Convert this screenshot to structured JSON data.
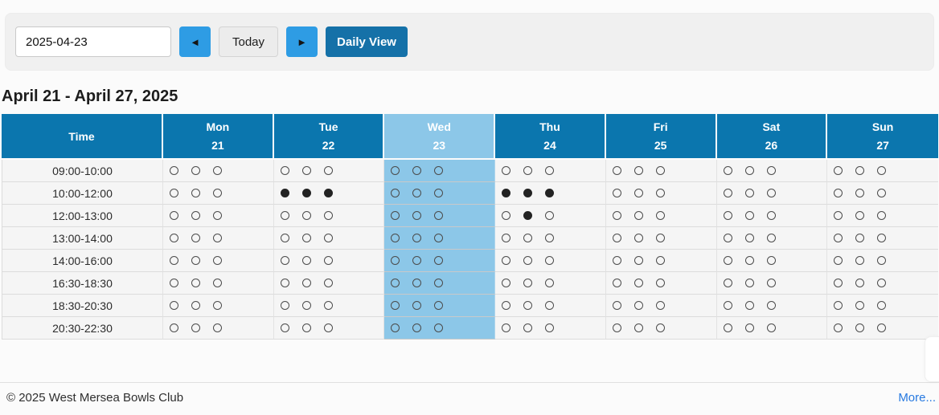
{
  "toolbar": {
    "date_value": "2025-04-23",
    "prev_icon": "◄",
    "today_label": "Today",
    "next_icon": "►",
    "daily_view_label": "Daily View"
  },
  "page_title": "April 21 - April 27, 2025",
  "table": {
    "time_header": "Time",
    "days": [
      {
        "name": "Mon",
        "date": "21",
        "highlight": false
      },
      {
        "name": "Tue",
        "date": "22",
        "highlight": false
      },
      {
        "name": "Wed",
        "date": "23",
        "highlight": true
      },
      {
        "name": "Thu",
        "date": "24",
        "highlight": false
      },
      {
        "name": "Fri",
        "date": "25",
        "highlight": false
      },
      {
        "name": "Sat",
        "date": "26",
        "highlight": false
      },
      {
        "name": "Sun",
        "date": "27",
        "highlight": false
      }
    ],
    "rows": [
      {
        "time": "09:00-10:00",
        "slots": [
          [
            0,
            0,
            0
          ],
          [
            0,
            0,
            0
          ],
          [
            0,
            0,
            0
          ],
          [
            0,
            0,
            0
          ],
          [
            0,
            0,
            0
          ],
          [
            0,
            0,
            0
          ],
          [
            0,
            0,
            0
          ]
        ]
      },
      {
        "time": "10:00-12:00",
        "slots": [
          [
            0,
            0,
            0
          ],
          [
            1,
            1,
            1
          ],
          [
            0,
            0,
            0
          ],
          [
            1,
            1,
            1
          ],
          [
            0,
            0,
            0
          ],
          [
            0,
            0,
            0
          ],
          [
            0,
            0,
            0
          ]
        ]
      },
      {
        "time": "12:00-13:00",
        "slots": [
          [
            0,
            0,
            0
          ],
          [
            0,
            0,
            0
          ],
          [
            0,
            0,
            0
          ],
          [
            0,
            1,
            0
          ],
          [
            0,
            0,
            0
          ],
          [
            0,
            0,
            0
          ],
          [
            0,
            0,
            0
          ]
        ]
      },
      {
        "time": "13:00-14:00",
        "slots": [
          [
            0,
            0,
            0
          ],
          [
            0,
            0,
            0
          ],
          [
            0,
            0,
            0
          ],
          [
            0,
            0,
            0
          ],
          [
            0,
            0,
            0
          ],
          [
            0,
            0,
            0
          ],
          [
            0,
            0,
            0
          ]
        ]
      },
      {
        "time": "14:00-16:00",
        "slots": [
          [
            0,
            0,
            0
          ],
          [
            0,
            0,
            0
          ],
          [
            0,
            0,
            0
          ],
          [
            0,
            0,
            0
          ],
          [
            0,
            0,
            0
          ],
          [
            0,
            0,
            0
          ],
          [
            0,
            0,
            0
          ]
        ]
      },
      {
        "time": "16:30-18:30",
        "slots": [
          [
            0,
            0,
            0
          ],
          [
            0,
            0,
            0
          ],
          [
            0,
            0,
            0
          ],
          [
            0,
            0,
            0
          ],
          [
            0,
            0,
            0
          ],
          [
            0,
            0,
            0
          ],
          [
            0,
            0,
            0
          ]
        ]
      },
      {
        "time": "18:30-20:30",
        "slots": [
          [
            0,
            0,
            0
          ],
          [
            0,
            0,
            0
          ],
          [
            0,
            0,
            0
          ],
          [
            0,
            0,
            0
          ],
          [
            0,
            0,
            0
          ],
          [
            0,
            0,
            0
          ],
          [
            0,
            0,
            0
          ]
        ]
      },
      {
        "time": "20:30-22:30",
        "slots": [
          [
            0,
            0,
            0
          ],
          [
            0,
            0,
            0
          ],
          [
            0,
            0,
            0
          ],
          [
            0,
            0,
            0
          ],
          [
            0,
            0,
            0
          ],
          [
            0,
            0,
            0
          ],
          [
            0,
            0,
            0
          ]
        ]
      }
    ]
  },
  "footer": {
    "copyright": "© 2025 West Mersea Bowls Club",
    "more_label": "More..."
  },
  "colors": {
    "header_blue": "#0b76ae",
    "highlight_blue": "#8cc7e8",
    "nav_button_blue": "#2e9ce4",
    "daily_view_blue": "#1571a8",
    "link_blue": "#2779e0"
  }
}
